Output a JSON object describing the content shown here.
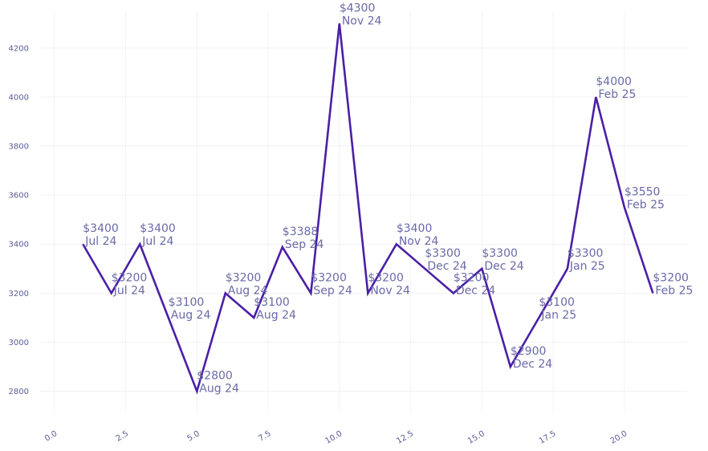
{
  "chart_data": {
    "type": "line",
    "title": "",
    "xlabel": "",
    "ylabel": "",
    "xlim": [
      -0.5,
      22.2
    ],
    "ylim": [
      2720,
      4350
    ],
    "grid": true,
    "x_ticks": [
      0,
      2.5,
      5,
      7.5,
      10,
      12.5,
      15,
      17.5,
      20
    ],
    "x_tick_labels": [
      "0.0",
      "2.5",
      "5.0",
      "7.5",
      "10.0",
      "12.5",
      "15.0",
      "17.5",
      "20.0"
    ],
    "y_ticks": [
      2800,
      3000,
      3200,
      3400,
      3600,
      3800,
      4000,
      4200
    ],
    "y_tick_labels": [
      "2800",
      "3000",
      "3200",
      "3400",
      "3600",
      "3800",
      "4000",
      "4200"
    ],
    "line_color": "#4b1fa6",
    "grid_color": "#f2f2f8",
    "label_color": "#6a6aa8",
    "series": [
      {
        "x": [
          1,
          2,
          3,
          4,
          5,
          6,
          7,
          8,
          9,
          10,
          11,
          12,
          13,
          14,
          15,
          16,
          17,
          18,
          19,
          20,
          21
        ],
        "values": [
          3400,
          3200,
          3400,
          3100,
          2800,
          3200,
          3100,
          3388,
          3200,
          4300,
          3200,
          3400,
          3300,
          3200,
          3300,
          2900,
          3100,
          3300,
          4000,
          3550,
          3200
        ],
        "price_labels": [
          "$3400",
          "$3200",
          "$3400",
          "$3100",
          "$2800",
          "$3200",
          "$3100",
          "$3388",
          "$3200",
          "$4300",
          "$3200",
          "$3400",
          "$3300",
          "$3200",
          "$3300",
          "$2900",
          "$3100",
          "$3300",
          "$4000",
          "$3550",
          "$3200"
        ],
        "date_labels": [
          "Jul 24",
          "Jul 24",
          "Jul 24",
          "Aug 24",
          "Aug 24",
          "Aug 24",
          "Aug 24",
          "Sep 24",
          "Sep 24",
          "Nov 24",
          "Nov 24",
          "Nov 24",
          "Dec 24",
          "Dec 24",
          "Dec 24",
          "Dec 24",
          "Jan 25",
          "Jan 25",
          "Feb 25",
          "Feb 25",
          "Feb 25"
        ]
      }
    ]
  }
}
